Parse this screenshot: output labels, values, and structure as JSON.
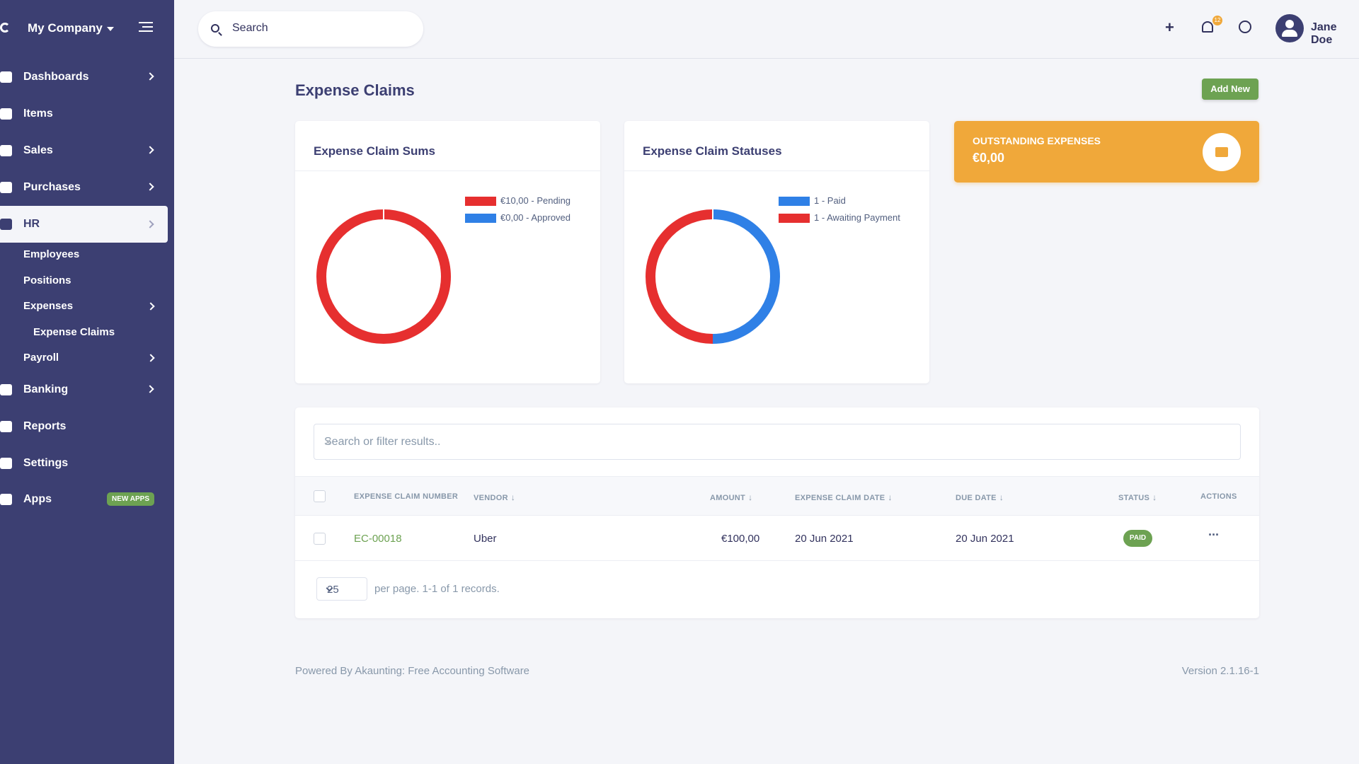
{
  "sidebar": {
    "company": "My Company",
    "items": [
      {
        "label": "Dashboards",
        "icon": "dashboard-icon"
      },
      {
        "label": "Items",
        "icon": "cube-icon"
      },
      {
        "label": "Sales",
        "icon": "money-icon"
      },
      {
        "label": "Purchases",
        "icon": "cart-icon"
      },
      {
        "label": "HR",
        "icon": "users-icon"
      },
      {
        "label": "Banking",
        "icon": "briefcase-icon"
      },
      {
        "label": "Reports",
        "icon": "chart-pie-icon"
      },
      {
        "label": "Settings",
        "icon": "gear-icon"
      },
      {
        "label": "Apps",
        "icon": "rocket-icon"
      }
    ],
    "hr_sub": {
      "employees": "Employees",
      "positions": "Positions",
      "expenses": "Expenses",
      "expense_claims": "Expense Claims",
      "payroll": "Payroll"
    },
    "apps_badge": "NEW APPS"
  },
  "header": {
    "search_placeholder": "Search",
    "notification_count": "12",
    "user_name": "Jane Doe"
  },
  "page": {
    "title": "Expense Claims",
    "add_new": "Add New"
  },
  "cards": {
    "sums_title": "Expense Claim Sums",
    "sums_legend": [
      "€10,00 - Pending",
      "€0,00 - Approved"
    ],
    "statuses_title": "Expense Claim Statuses",
    "statuses_legend": [
      "1 - Paid",
      "1 - Awaiting Payment"
    ],
    "outstanding_label": "OUTSTANDING EXPENSES",
    "outstanding_value": "€0,00"
  },
  "chart_data": [
    {
      "type": "pie",
      "title": "Expense Claim Sums",
      "categories": [
        "€10,00 - Pending",
        "€0,00 - Approved"
      ],
      "values": [
        10,
        0
      ],
      "colors": [
        "#e62f2f",
        "#2f80e6"
      ]
    },
    {
      "type": "pie",
      "title": "Expense Claim Statuses",
      "categories": [
        "1 - Paid",
        "1 - Awaiting Payment"
      ],
      "values": [
        1,
        1
      ],
      "colors": [
        "#2f80e6",
        "#e62f2f"
      ]
    }
  ],
  "colors": {
    "sidebar": "#3c3f72",
    "accent_green": "#6da252",
    "kpi_orange": "#f0a83a",
    "pending_red": "#e62f2f",
    "paid_blue": "#2f80e6"
  },
  "table": {
    "filter_placeholder": "Search or filter results..",
    "headers": {
      "number": "EXPENSE CLAIM NUMBER",
      "vendor": "VENDOR",
      "amount": "AMOUNT",
      "claim_date": "EXPENSE CLAIM DATE",
      "due_date": "DUE DATE",
      "status": "STATUS",
      "actions": "ACTIONS"
    },
    "rows": [
      {
        "number": "EC-00018",
        "vendor": "Uber",
        "amount": "€100,00",
        "claim_date": "20 Jun 2021",
        "due_date": "20 Jun 2021",
        "status": "PAID"
      }
    ],
    "per_page": "25",
    "pager_text": "per page. 1-1 of 1 records."
  },
  "footer": {
    "powered": "Powered By Akaunting: Free Accounting Software",
    "version": "Version 2.1.16-1"
  }
}
